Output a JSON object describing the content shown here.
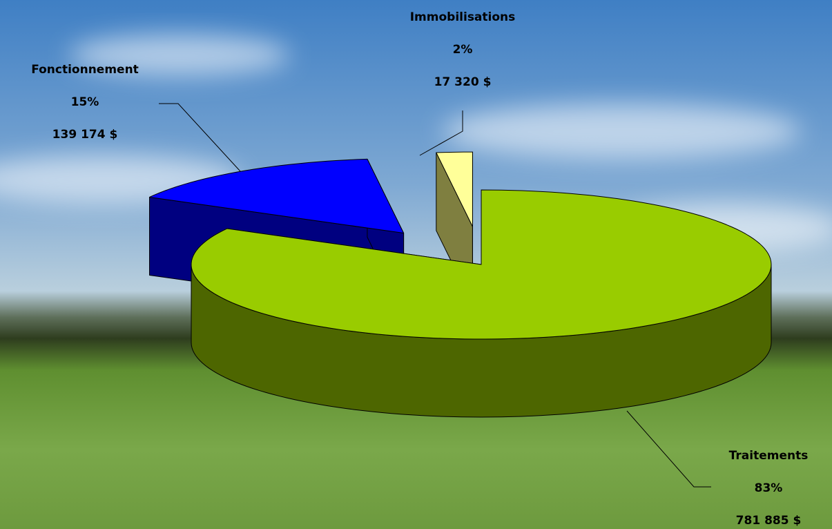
{
  "chart_data": {
    "type": "pie3d",
    "categories": [
      "Traitements",
      "Fonctionnement",
      "Immobilisations"
    ],
    "values": [
      83,
      15,
      2
    ],
    "value_labels": [
      "83%",
      "15%",
      "2%"
    ],
    "amounts": [
      781885,
      139174,
      17320
    ],
    "amount_labels": [
      "781 885 $",
      "139 174 $",
      "17 320 $"
    ],
    "colors": [
      "#99cc00",
      "#0000ff",
      "#ffff99"
    ],
    "side_colors": [
      "#4d6600",
      "#000080",
      "#7f7f40"
    ]
  }
}
